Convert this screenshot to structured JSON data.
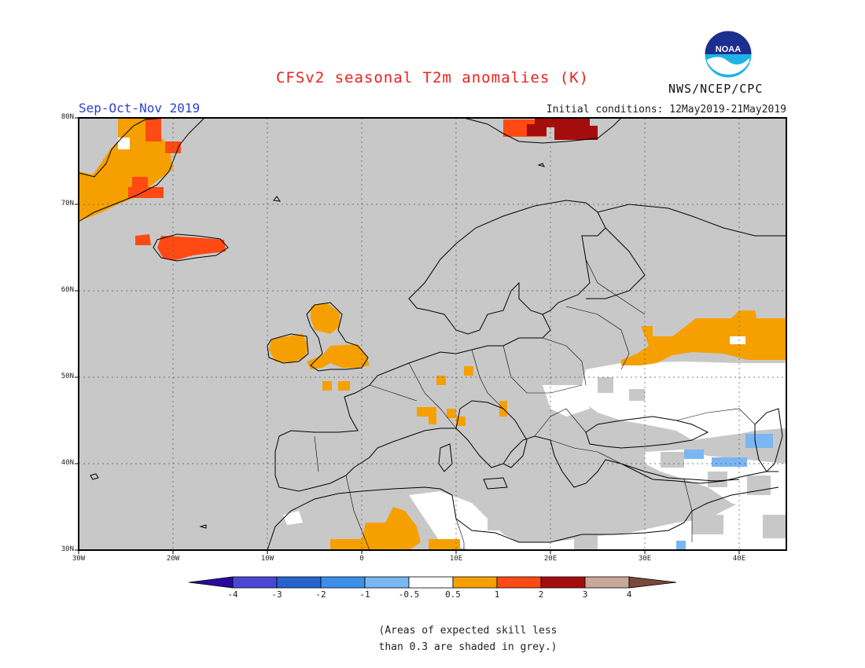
{
  "header": {
    "title": "CFSv2 seasonal T2m anomalies (K)",
    "season": "Sep-Oct-Nov 2019",
    "initial_conditions": "Initial conditions: 12May2019-21May2019",
    "agency": "NWS/NCEP/CPC",
    "logo_text": "NOAA"
  },
  "map": {
    "lat_labels": [
      "80N",
      "70N",
      "60N",
      "50N",
      "40N",
      "30N"
    ],
    "lon_labels": [
      "30W",
      "20W",
      "10W",
      "0",
      "10E",
      "20E",
      "30E",
      "40E"
    ],
    "land_color": "#c8c8c8",
    "outline_color": "#000000"
  },
  "colorbar": {
    "labels": [
      "-4",
      "-3",
      "-2",
      "-1",
      "-0.5",
      "0.5",
      "1",
      "2",
      "3",
      "4"
    ],
    "colors": [
      "#2a0a9e",
      "#4b46d6",
      "#2763cc",
      "#3c8fe8",
      "#7ab6f2",
      "#ffffff",
      "#f5a000",
      "#ff4a14",
      "#a50d0d",
      "#c8a898",
      "#7a4a3a"
    ]
  },
  "note": {
    "line1": "(Areas of expected skill less",
    "line2": "than 0.3 are shaded in grey.)"
  }
}
